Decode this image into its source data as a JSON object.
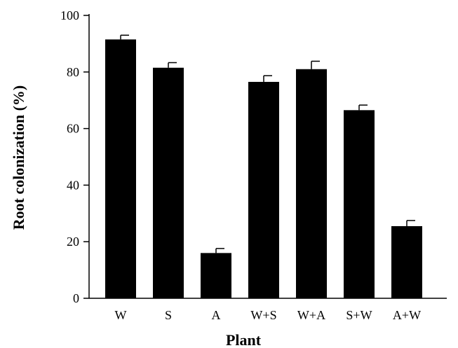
{
  "chart_data": {
    "type": "bar",
    "title": "",
    "xlabel": "Plant",
    "ylabel": "Root colonization (%)",
    "categories": [
      "W",
      "S",
      "A",
      "W+S",
      "W+A",
      "S+W",
      "A+W"
    ],
    "values": [
      91.5,
      81.5,
      16,
      76.5,
      81,
      66.5,
      25.5
    ],
    "errors": [
      1.5,
      1.8,
      1.6,
      2.2,
      2.8,
      1.8,
      2.0
    ],
    "ylim": [
      0,
      100
    ],
    "yticks": [
      0,
      20,
      40,
      60,
      80,
      100
    ],
    "grid": false,
    "bar_color": "#000000"
  }
}
